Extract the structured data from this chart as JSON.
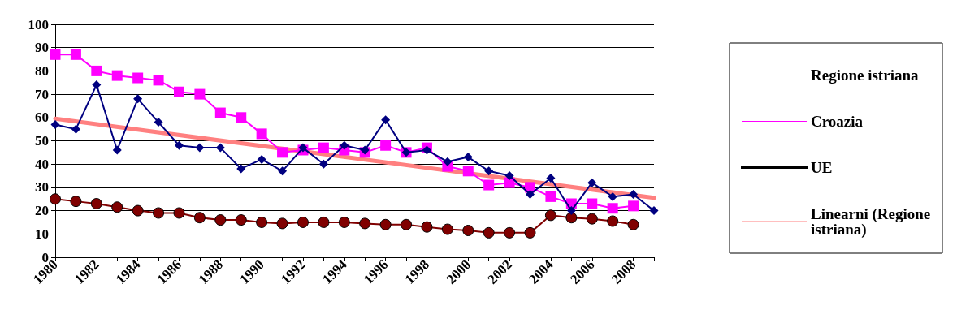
{
  "chart_data": {
    "type": "line",
    "categories": [
      "1980",
      null,
      "1982",
      null,
      "1984",
      null,
      "1986",
      null,
      "1988",
      null,
      "1990",
      null,
      "1992",
      null,
      "1994",
      null,
      "1996",
      null,
      "1998",
      null,
      "2000",
      null,
      "2002",
      null,
      "2004",
      null,
      "2006",
      null,
      "2008",
      null
    ],
    "series": [
      {
        "name": "Regione istriana",
        "color": "#000080",
        "marker": "diamond",
        "values": [
          57,
          55,
          74,
          46,
          68,
          58,
          48,
          47,
          47,
          38,
          42,
          37,
          47,
          40,
          48,
          46,
          59,
          45,
          46,
          41,
          43,
          37,
          35,
          27,
          34,
          20,
          32,
          26,
          27,
          20
        ]
      },
      {
        "name": "Croazia",
        "color": "#ff00ff",
        "marker": "square",
        "values": [
          87,
          87,
          80,
          78,
          77,
          76,
          71,
          70,
          62,
          60,
          53,
          45,
          46,
          47,
          46,
          45,
          48,
          45,
          47,
          39,
          37,
          31,
          32,
          30,
          26,
          23,
          23,
          21,
          22,
          null
        ]
      },
      {
        "name": "UE",
        "color": "#800000",
        "marker": "circle",
        "values": [
          25,
          24,
          23,
          21.5,
          20,
          19,
          19,
          17,
          16,
          16,
          15,
          14.5,
          15,
          15,
          15,
          14.5,
          14,
          14,
          13,
          12,
          11.5,
          10.5,
          10.5,
          10.5,
          18,
          17,
          16.5,
          15.5,
          14,
          null
        ]
      },
      {
        "name": "Linearni (Regione istriana)",
        "color": "#ff8080",
        "marker": "none",
        "values": [
          59.5,
          null,
          null,
          null,
          null,
          null,
          null,
          null,
          null,
          null,
          null,
          null,
          null,
          null,
          null,
          null,
          null,
          null,
          null,
          null,
          null,
          null,
          null,
          null,
          null,
          null,
          null,
          null,
          null,
          25.5
        ]
      }
    ],
    "ylim": [
      0,
      100
    ],
    "yticks": [
      0,
      10,
      20,
      30,
      40,
      50,
      60,
      70,
      80,
      90,
      100
    ],
    "grid": "y",
    "legend": "right"
  }
}
